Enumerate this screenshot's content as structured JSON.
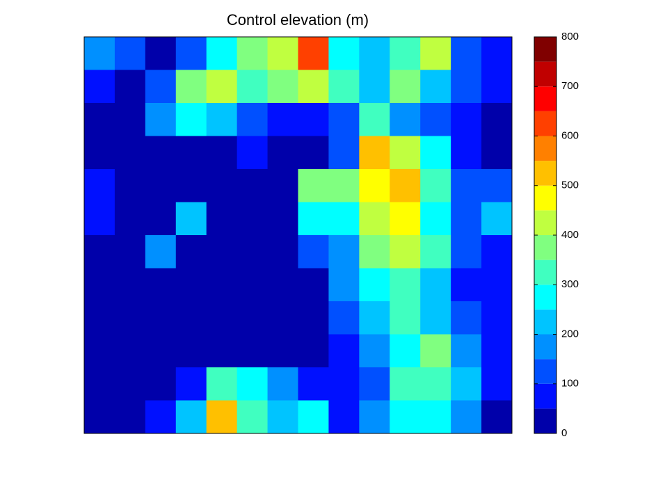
{
  "chart_data": {
    "type": "heatmap",
    "title": "Control elevation (m)",
    "levels": [
      0,
      50,
      100,
      150,
      200,
      250,
      300,
      350,
      400,
      450,
      500,
      550,
      600,
      650,
      700,
      750,
      800
    ],
    "colors": [
      "#0000aa",
      "#0010ff",
      "#0050ff",
      "#0090ff",
      "#00c4ff",
      "#00ffff",
      "#40ffc0",
      "#80ff80",
      "#c0ff40",
      "#ffff00",
      "#ffc000",
      "#ff8000",
      "#ff4000",
      "#ff0000",
      "#c00000",
      "#800000"
    ],
    "clim": [
      0,
      800
    ],
    "cticks": [
      0,
      100,
      200,
      300,
      400,
      500,
      600,
      700,
      800
    ],
    "z": [
      [
        150,
        100,
        30,
        120,
        250,
        350,
        400,
        600,
        250,
        200,
        300,
        400,
        100,
        80
      ],
      [
        80,
        30,
        120,
        350,
        400,
        300,
        350,
        400,
        300,
        200,
        350,
        200,
        100,
        60
      ],
      [
        20,
        20,
        150,
        250,
        200,
        100,
        60,
        60,
        100,
        300,
        150,
        100,
        50,
        40
      ],
      [
        20,
        20,
        20,
        30,
        30,
        60,
        40,
        30,
        100,
        500,
        400,
        250,
        80,
        40
      ],
      [
        80,
        20,
        20,
        20,
        20,
        20,
        30,
        350,
        350,
        450,
        500,
        300,
        100,
        120
      ],
      [
        50,
        20,
        20,
        200,
        20,
        20,
        20,
        250,
        250,
        400,
        450,
        250,
        100,
        200
      ],
      [
        20,
        20,
        150,
        20,
        20,
        20,
        20,
        100,
        150,
        350,
        400,
        300,
        100,
        80
      ],
      [
        20,
        20,
        20,
        20,
        20,
        20,
        20,
        20,
        150,
        250,
        300,
        200,
        80,
        60
      ],
      [
        20,
        20,
        20,
        20,
        20,
        20,
        20,
        20,
        100,
        200,
        300,
        200,
        100,
        60
      ],
      [
        20,
        20,
        20,
        20,
        20,
        20,
        20,
        20,
        80,
        150,
        250,
        350,
        150,
        50
      ],
      [
        20,
        20,
        30,
        80,
        300,
        250,
        150,
        80,
        80,
        100,
        300,
        300,
        200,
        50
      ],
      [
        20,
        20,
        80,
        200,
        500,
        300,
        200,
        250,
        60,
        150,
        250,
        250,
        150,
        40
      ]
    ]
  }
}
